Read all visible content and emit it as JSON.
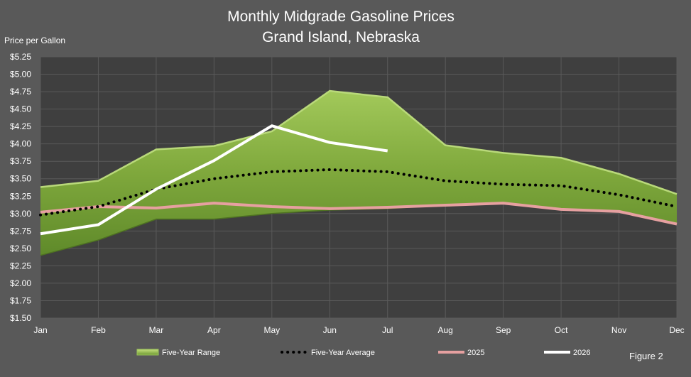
{
  "chart_data": {
    "type": "area",
    "title": [
      "Monthly Midgrade Gasoline Prices",
      "Grand Island, Nebraska"
    ],
    "ylabel": "Price per Gallon",
    "xlabel": "",
    "categories": [
      "Jan",
      "Feb",
      "Mar",
      "Apr",
      "May",
      "Jun",
      "Jul",
      "Aug",
      "Sep",
      "Oct",
      "Nov",
      "Dec"
    ],
    "y_ticks": [
      "$1.50",
      "$1.75",
      "$2.00",
      "$2.25",
      "$2.50",
      "$2.75",
      "$3.00",
      "$3.25",
      "$3.50",
      "$3.75",
      "$4.00",
      "$4.25",
      "$4.50",
      "$4.75",
      "$5.00",
      "$5.25"
    ],
    "ylim": [
      1.5,
      5.25
    ],
    "grid": true,
    "range": {
      "name": "Five-Year Range",
      "high": [
        3.38,
        3.47,
        3.92,
        3.97,
        4.18,
        4.76,
        4.67,
        3.98,
        3.87,
        3.8,
        3.57,
        3.28
      ],
      "low": [
        2.4,
        2.62,
        2.92,
        2.92,
        3.0,
        3.05,
        3.07,
        3.12,
        3.15,
        3.06,
        3.03,
        2.85
      ],
      "color": "#7faa3b"
    },
    "series": [
      {
        "name": "Five-Year Average",
        "values": [
          2.98,
          3.1,
          3.35,
          3.5,
          3.6,
          3.63,
          3.6,
          3.47,
          3.42,
          3.4,
          3.27,
          3.1
        ],
        "color": "#000000",
        "style": "dotted"
      },
      {
        "name": "2025",
        "values": [
          3.02,
          3.1,
          3.08,
          3.15,
          3.1,
          3.07,
          3.09,
          3.12,
          3.15,
          3.06,
          3.03,
          2.85
        ],
        "color": "#e6a0a0",
        "style": "solid"
      },
      {
        "name": "2026",
        "values": [
          2.71,
          2.84,
          3.35,
          3.76,
          4.26,
          4.02,
          3.9,
          null,
          null,
          null,
          null,
          null
        ],
        "color": "#ffffff",
        "style": "solid"
      }
    ],
    "legend": {
      "position": "bottom",
      "items": [
        "Five-Year Range",
        "Five-Year Average",
        "2025",
        "2026"
      ]
    },
    "figure_label": "Figure 2"
  }
}
